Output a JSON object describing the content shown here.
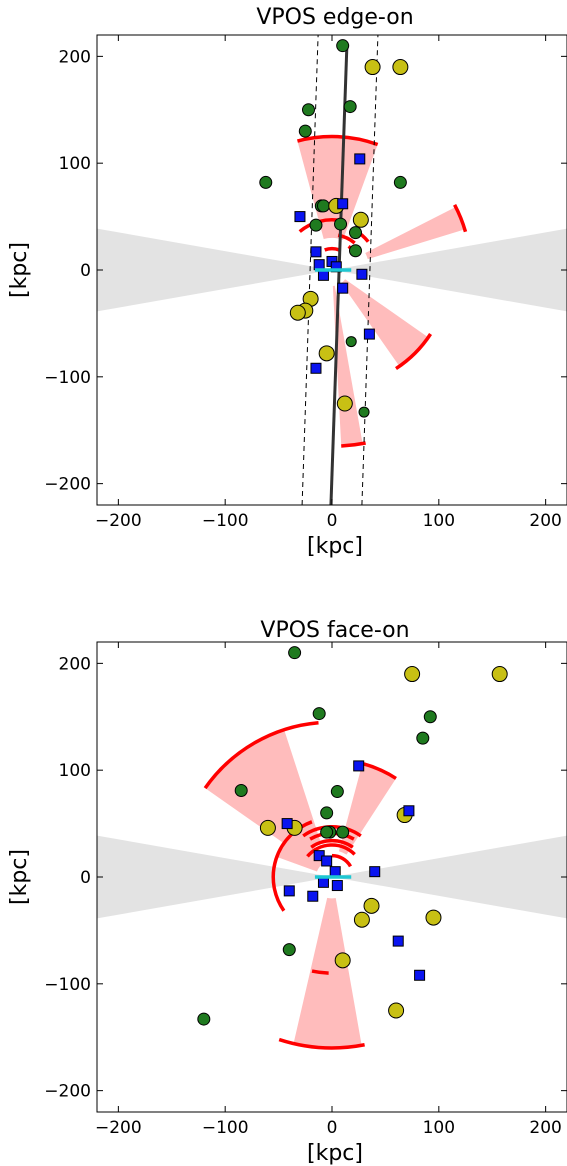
{
  "chart_data": [
    {
      "type": "scatter",
      "title": "VPOS edge-on",
      "xlabel": "[kpc]",
      "ylabel": "[kpc]",
      "xlim": [
        -220,
        220
      ],
      "ylim": [
        -220,
        220
      ],
      "xticks": [
        -200,
        -100,
        0,
        100,
        200
      ],
      "yticks": [
        -200,
        -100,
        0,
        100,
        200
      ],
      "xtick_labels": [
        "−200",
        "−100",
        "0",
        "100",
        "200"
      ],
      "ytick_labels": [
        "−200",
        "−100",
        "0",
        "100",
        "200"
      ],
      "colors": {
        "green": "#1f7a1f",
        "yellow": "#c8c014",
        "blue": "#0a14f0",
        "red": "#ff0000",
        "wedge": "#ffbcbc",
        "cyan": "#1ec8d2",
        "gray": "#e3e3e3",
        "plane": "#333333"
      },
      "gray_band_halfangle_deg": 10,
      "plane_line": [
        [
          -1,
          -220
        ],
        [
          14,
          212
        ]
      ],
      "dashed_lines": [
        [
          [
            -28,
            -220
          ],
          [
            -13,
            220
          ]
        ],
        [
          [
            28,
            -220
          ],
          [
            43,
            220
          ]
        ]
      ],
      "disk_segment": [
        [
          -16,
          0
        ],
        [
          18,
          0
        ]
      ],
      "wedges": [
        {
          "r_in": 30,
          "r_out": 125,
          "ang_from": 70,
          "ang_to": 105,
          "arc_from": 70,
          "arc_to": 105
        },
        {
          "r_in": 35,
          "r_out": 130,
          "ang_from": 17,
          "ang_to": 27,
          "arc_from": 16,
          "arc_to": 28
        },
        {
          "r_in": 15,
          "r_out": 110,
          "ang_from": -55,
          "ang_to": -35,
          "arc_from": -57,
          "arc_to": -33
        },
        {
          "r_in": 15,
          "r_out": 165,
          "ang_from": -87,
          "ang_to": -80,
          "arc_from": -87,
          "arc_to": -79
        }
      ],
      "extra_arcs": [
        {
          "r": 47,
          "from": 80,
          "to": 130
        },
        {
          "r": 43,
          "from": 38,
          "to": 60
        },
        {
          "r": 33,
          "from": 50,
          "to": 80
        },
        {
          "r": 27,
          "from": 30,
          "to": 55
        },
        {
          "r": 20,
          "from": 70,
          "to": 110
        }
      ],
      "series": [
        {
          "name": "",
          "marker": "circle-green",
          "points": [
            [
              10,
              210
            ],
            [
              -22,
              150
            ],
            [
              -25,
              130
            ],
            [
              17,
              153
            ],
            [
              -62,
              82
            ],
            [
              64,
              82
            ],
            [
              -10,
              60
            ],
            [
              -15,
              42
            ],
            [
              8,
              43
            ],
            [
              22,
              35
            ],
            [
              -8,
              60
            ],
            [
              22,
              18
            ]
          ]
        },
        {
          "name": "",
          "marker": "circle-yellow",
          "points": [
            [
              38,
              190
            ],
            [
              64,
              190
            ],
            [
              4,
              60
            ],
            [
              27,
              47
            ],
            [
              -20,
              -27
            ],
            [
              -25,
              -38
            ],
            [
              -32,
              -40
            ],
            [
              -5,
              -78
            ],
            [
              12,
              -125
            ]
          ]
        },
        {
          "name": "",
          "marker": "circle-green-small",
          "points": [
            [
              18,
              -67
            ],
            [
              30,
              -133
            ]
          ]
        },
        {
          "name": "",
          "marker": "square-blue",
          "points": [
            [
              26,
              104
            ],
            [
              -30,
              50
            ],
            [
              10,
              62
            ],
            [
              -15,
              17
            ],
            [
              -12,
              5
            ],
            [
              -8,
              -5
            ],
            [
              0,
              8
            ],
            [
              4,
              3
            ],
            [
              10,
              -17
            ],
            [
              28,
              -4
            ],
            [
              35,
              -60
            ],
            [
              -15,
              -92
            ]
          ]
        }
      ]
    },
    {
      "type": "scatter",
      "title": "VPOS face-on",
      "xlabel": "[kpc]",
      "ylabel": "[kpc]",
      "xlim": [
        -220,
        220
      ],
      "ylim": [
        -220,
        220
      ],
      "xticks": [
        -200,
        -100,
        0,
        100,
        200
      ],
      "yticks": [
        -200,
        -100,
        0,
        100,
        200
      ],
      "xtick_labels": [
        "−200",
        "−100",
        "0",
        "100",
        "200"
      ],
      "ytick_labels": [
        "−200",
        "−100",
        "0",
        "100",
        "200"
      ],
      "colors": {
        "green": "#1f7a1f",
        "yellow": "#c8c014",
        "blue": "#0a14f0",
        "red": "#ff0000",
        "wedge": "#ffbcbc",
        "cyan": "#1ec8d2",
        "gray": "#e3e3e3"
      },
      "gray_band_halfangle_deg": 10,
      "disk_segment": [
        [
          -16,
          0
        ],
        [
          18,
          0
        ]
      ],
      "wedges": [
        {
          "r_in": 35,
          "r_out": 145,
          "ang_from": 108,
          "ang_to": 145,
          "arc_from": 95,
          "arc_to": 145
        },
        {
          "r_in": 25,
          "r_out": 110,
          "ang_from": 57,
          "ang_to": 75,
          "arc_from": 57,
          "arc_to": 75
        },
        {
          "r_in": 20,
          "r_out": 160,
          "ang_from": -103,
          "ang_to": -80,
          "arc_from": -108,
          "arc_to": -79
        },
        {
          "r_in": 15,
          "r_out": 55,
          "ang_from": 120,
          "ang_to": 160,
          "arc_from": 110,
          "arc_to": 215
        }
      ],
      "extra_arcs": [
        {
          "r": 47,
          "from": 55,
          "to": 125
        },
        {
          "r": 41,
          "from": 60,
          "to": 120
        },
        {
          "r": 34,
          "from": 55,
          "to": 125
        },
        {
          "r": 30,
          "from": 45,
          "to": 140
        },
        {
          "r": 20,
          "from": 30,
          "to": 90
        },
        {
          "r": 90,
          "from": -102,
          "to": -92
        }
      ],
      "series": [
        {
          "name": "",
          "marker": "circle-green",
          "points": [
            [
              -35,
              210
            ],
            [
              -12,
              153
            ],
            [
              92,
              150
            ],
            [
              85,
              130
            ],
            [
              -85,
              81
            ],
            [
              -5,
              60
            ],
            [
              5,
              80
            ],
            [
              -2,
              42
            ],
            [
              -5,
              42
            ],
            [
              10,
              42
            ],
            [
              -40,
              -68
            ],
            [
              -120,
              -133
            ]
          ]
        },
        {
          "name": "",
          "marker": "circle-yellow",
          "points": [
            [
              75,
              190
            ],
            [
              157,
              190
            ],
            [
              68,
              58
            ],
            [
              -60,
              46
            ],
            [
              -35,
              46
            ],
            [
              37,
              -27
            ],
            [
              28,
              -40
            ],
            [
              95,
              -38
            ],
            [
              10,
              -78
            ],
            [
              60,
              -125
            ]
          ]
        },
        {
          "name": "",
          "marker": "square-blue",
          "points": [
            [
              25,
              104
            ],
            [
              72,
              62
            ],
            [
              -42,
              50
            ],
            [
              -12,
              20
            ],
            [
              -5,
              15
            ],
            [
              3,
              5
            ],
            [
              -8,
              -5
            ],
            [
              5,
              -8
            ],
            [
              -18,
              -18
            ],
            [
              40,
              5
            ],
            [
              -40,
              -13
            ],
            [
              62,
              -60
            ],
            [
              82,
              -92
            ]
          ]
        }
      ]
    }
  ]
}
